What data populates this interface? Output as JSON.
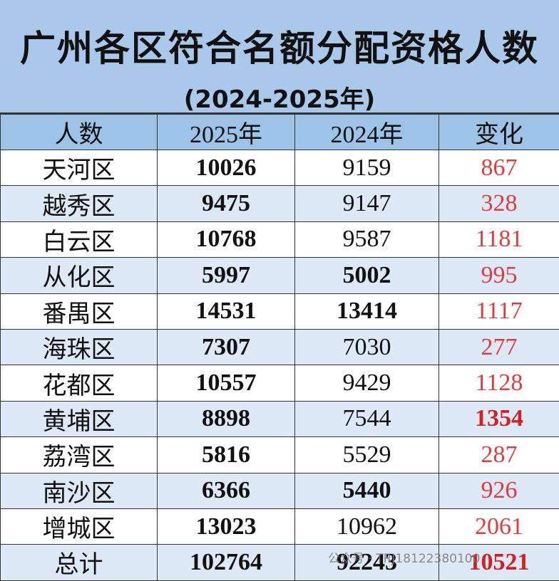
{
  "header": {
    "title": "广州各区符合名额分配资格人数",
    "subtitle": "(2024-2025年)"
  },
  "table": {
    "columns": [
      "人数",
      "2025年",
      "2024年",
      "变化"
    ],
    "rows": [
      [
        "天河区",
        10026,
        9159,
        867
      ],
      [
        "越秀区",
        9475,
        9147,
        328
      ],
      [
        "白云区",
        10768,
        9587,
        1181
      ],
      [
        "从化区",
        5997,
        5002,
        995
      ],
      [
        "番禺区",
        14531,
        13414,
        1117
      ],
      [
        "海珠区",
        7307,
        7030,
        277
      ],
      [
        "花都区",
        10557,
        9429,
        1128
      ],
      [
        "黄埔区",
        8898,
        7544,
        1354
      ],
      [
        "荔湾区",
        5816,
        5529,
        287
      ],
      [
        "南沙区",
        6366,
        5440,
        926
      ],
      [
        "增城区",
        13023,
        10962,
        2061
      ],
      [
        "总计",
        102764,
        92243,
        10521
      ]
    ]
  },
  "watermark": "公众号 · TRJ18122380100"
}
